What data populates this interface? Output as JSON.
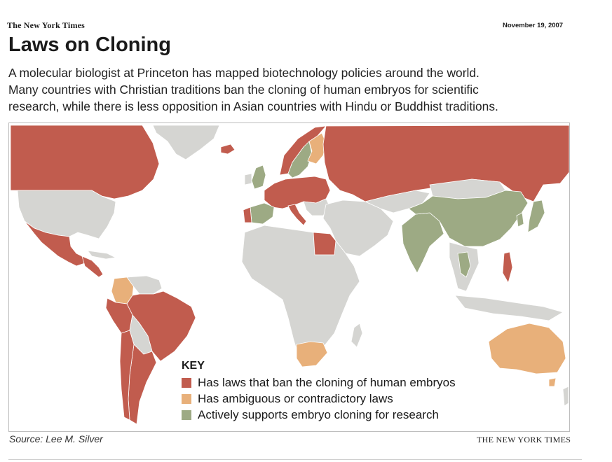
{
  "header": {
    "masthead": "The New York Times",
    "date": "November 19, 2007",
    "title": "Laws on Cloning",
    "dek_lines": [
      "A molecular biologist at Princeton has mapped biotechnology policies around the world.",
      "Many countries with Christian traditions ban the cloning of human embryos for scientific",
      "research, while there is less opposition in Asian countries with Hindu or Buddhist traditions."
    ]
  },
  "colors": {
    "ban": "#c15c4e",
    "ambiguous": "#e8b07a",
    "supports": "#9daa84",
    "no_data": "#d5d5d2",
    "ocean": "#ffffff"
  },
  "key": {
    "title": "KEY",
    "items": [
      {
        "label": "Has laws that ban the cloning of human embryos",
        "category": "ban"
      },
      {
        "label": "Has ambiguous or contradictory laws",
        "category": "ambiguous"
      },
      {
        "label": "Actively supports embryo cloning for research",
        "category": "supports"
      }
    ]
  },
  "regions": [
    {
      "name": "Canada",
      "category": "ban"
    },
    {
      "name": "United States",
      "category": "no_data"
    },
    {
      "name": "Mexico",
      "category": "ban"
    },
    {
      "name": "Central America",
      "category": "ban"
    },
    {
      "name": "Colombia",
      "category": "ambiguous"
    },
    {
      "name": "Brazil",
      "category": "ban"
    },
    {
      "name": "Peru",
      "category": "ban"
    },
    {
      "name": "Argentina",
      "category": "ban"
    },
    {
      "name": "Chile",
      "category": "ban"
    },
    {
      "name": "Greenland",
      "category": "no_data"
    },
    {
      "name": "Iceland",
      "category": "ban"
    },
    {
      "name": "United Kingdom",
      "category": "supports"
    },
    {
      "name": "Spain",
      "category": "supports"
    },
    {
      "name": "Portugal",
      "category": "ban"
    },
    {
      "name": "France",
      "category": "ban"
    },
    {
      "name": "Germany",
      "category": "ban"
    },
    {
      "name": "Italy",
      "category": "ban"
    },
    {
      "name": "Norway",
      "category": "ban"
    },
    {
      "name": "Sweden",
      "category": "supports"
    },
    {
      "name": "Finland",
      "category": "ambiguous"
    },
    {
      "name": "Russia",
      "category": "ban"
    },
    {
      "name": "Egypt",
      "category": "ban"
    },
    {
      "name": "South Africa",
      "category": "ambiguous"
    },
    {
      "name": "India",
      "category": "supports"
    },
    {
      "name": "China",
      "category": "supports"
    },
    {
      "name": "South Korea",
      "category": "supports"
    },
    {
      "name": "Japan",
      "category": "supports"
    },
    {
      "name": "Thailand",
      "category": "supports"
    },
    {
      "name": "Philippines",
      "category": "ban"
    },
    {
      "name": "Australia",
      "category": "ambiguous"
    }
  ],
  "footer": {
    "source": "Source: Lee M. Silver",
    "credit": "THE NEW YORK TIMES"
  }
}
